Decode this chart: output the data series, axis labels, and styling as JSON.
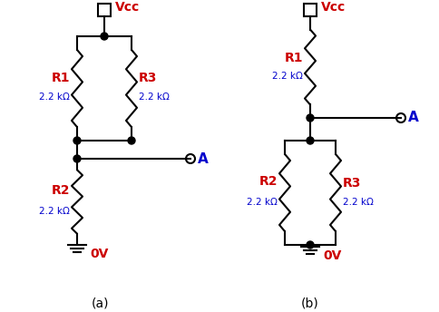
{
  "bg_color": "#ffffff",
  "line_color": "#000000",
  "red_color": "#cc0000",
  "blue_color": "#0000cc",
  "label_a": "(a)",
  "label_b": "(b)",
  "vcc_label": "Vcc",
  "ov_label": "0V",
  "r1_label": "R1",
  "r2_label": "R2",
  "r3_label": "R3",
  "val_label": "2.2 kΩ",
  "a_label": "A"
}
